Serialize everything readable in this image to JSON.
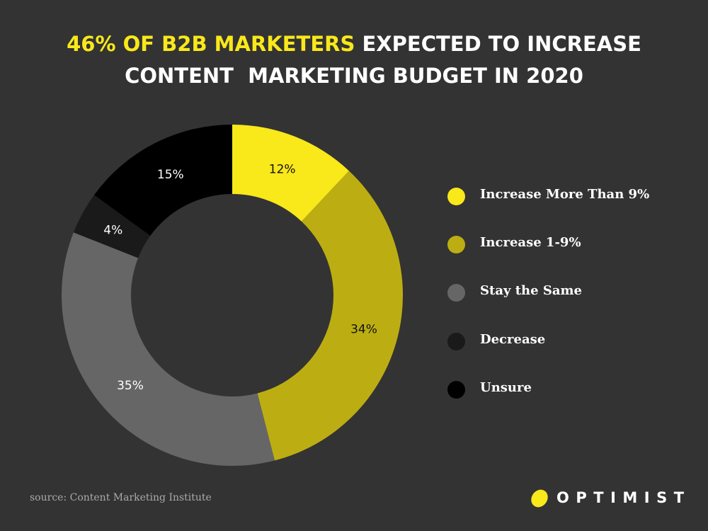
{
  "title": {
    "highlight": "46% OF B2B MARKETERS",
    "line1_rest": " EXPECTED TO INCREASE",
    "line2": "CONTENT  MARKETING BUDGET IN 2020",
    "highlight_color": "#f9e81a"
  },
  "chart_data": {
    "type": "pie",
    "variant": "donut",
    "title": "46% OF B2B MARKETERS EXPECTED TO INCREASE CONTENT MARKETING BUDGET IN 2020",
    "start": "top, clockwise",
    "unit": "%",
    "slices": [
      {
        "name": "Increase More Than 9%",
        "value": 12,
        "label": "12%",
        "color": "#f9e81a",
        "label_color": "#111111"
      },
      {
        "name": "Increase 1-9%",
        "value": 34,
        "label": "34%",
        "color": "#bcae12",
        "label_color": "#111111"
      },
      {
        "name": "Stay the Same",
        "value": 35,
        "label": "35%",
        "color": "#666666",
        "label_color": "#ffffff"
      },
      {
        "name": "Decrease",
        "value": 4,
        "label": "4%",
        "color": "#1a1a1a",
        "label_color": "#ffffff"
      },
      {
        "name": "Unsure",
        "value": 15,
        "label": "15%",
        "color": "#000000",
        "label_color": "#ffffff"
      }
    ],
    "legend_position": "right"
  },
  "legend": [
    {
      "label": "Increase More Than 9%",
      "color": "#f9e81a"
    },
    {
      "label": "Increase 1-9%",
      "color": "#bcae12"
    },
    {
      "label": "Stay the Same",
      "color": "#666666"
    },
    {
      "label": "Decrease",
      "color": "#1a1a1a"
    },
    {
      "label": "Unsure",
      "color": "#000000"
    }
  ],
  "source": "source: Content Marketing Institute",
  "brand": {
    "name": "OPTIMIST",
    "logo_icon": "lemon-icon",
    "logo_color": "#f9e81a"
  }
}
